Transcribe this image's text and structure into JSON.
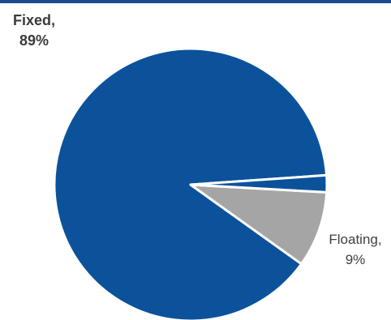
{
  "chart_data": {
    "type": "pie",
    "title": "",
    "slices": [
      {
        "label": "Fixed,",
        "value_label": "89%",
        "value": 89,
        "color": "#0b529b"
      },
      {
        "label": "Floating,",
        "value_label": "9%",
        "value": 9,
        "color": "#a5a5a5"
      },
      {
        "label": "",
        "value_label": "",
        "value": 2,
        "color": "#0b529b"
      }
    ],
    "legend": "none",
    "border_color": "#1a4c8b",
    "separator_color": "#ffffff"
  }
}
